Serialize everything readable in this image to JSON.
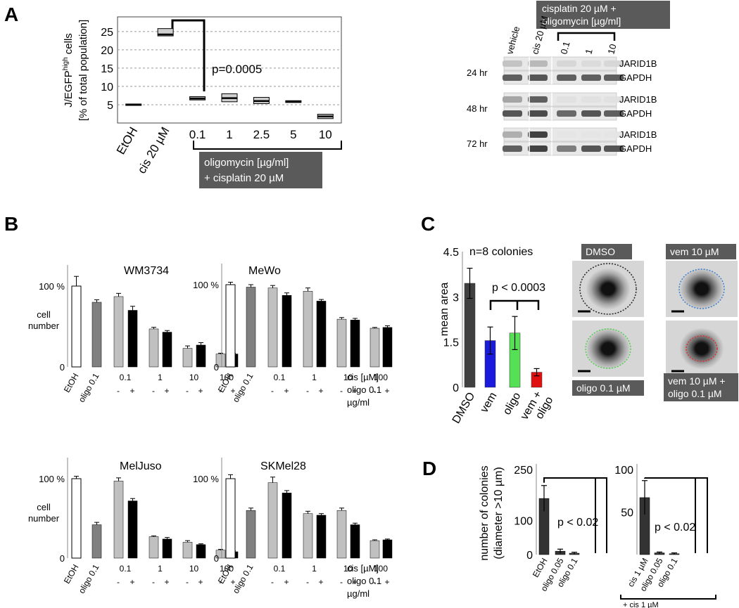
{
  "panels": {
    "A": {
      "label": "A",
      "chart": {
        "type": "box",
        "ylabel_line1": "J/EGFP",
        "ylabel_sup": "high",
        "ylabel_line1_tail": " cells",
        "ylabel_line2": "[% of total population]",
        "categories": [
          "EtOH",
          "cis 20 µM",
          "0.1",
          "1",
          "2.5",
          "5",
          "10"
        ],
        "yticks": [
          "5",
          "10",
          "15",
          "20",
          "25"
        ],
        "ylim": [
          0,
          29
        ],
        "boxes": [
          {
            "q1": 4.8,
            "median": 5.0,
            "q3": 5.2
          },
          {
            "q1": 23.8,
            "median": 24.2,
            "q3": 25.8
          },
          {
            "q1": 6.3,
            "median": 6.7,
            "q3": 7.2
          },
          {
            "q1": 5.8,
            "median": 6.8,
            "q3": 8.0
          },
          {
            "q1": 5.3,
            "median": 6.0,
            "q3": 7.0
          },
          {
            "q1": 5.6,
            "median": 5.9,
            "q3": 6.1
          },
          {
            "q1": 1.2,
            "median": 1.8,
            "q3": 2.4
          }
        ],
        "pvalue": "p=0.0005",
        "bracket_label_line1": "oligomycin [µg/ml]",
        "bracket_label_line2": "+ cisplatin 20 µM"
      },
      "blot": {
        "header_box_line1": "cisplatin 20 µM +",
        "header_box_line2": "oligomycin [µg/ml]",
        "lanes": [
          "vehicle",
          "cis 20 µM",
          "0.1",
          "1",
          "10"
        ],
        "rows": [
          {
            "time": "24 hr",
            "bands": [
              "JARID1B",
              "GAPDH"
            ]
          },
          {
            "time": "48 hr",
            "bands": [
              "JARID1B",
              "GAPDH"
            ]
          },
          {
            "time": "72 hr",
            "bands": [
              "JARID1B",
              "GAPDH"
            ]
          }
        ]
      }
    },
    "B": {
      "label": "B",
      "ytick_top": "100 %",
      "ytick_zero": "0",
      "ylabel_line1": "cell",
      "ylabel_line2": "number",
      "xlabels": [
        "EtOH",
        "oligo 0.1"
      ],
      "cis_doses": [
        "0.1",
        "1",
        "10",
        "100"
      ],
      "signs": [
        "-",
        "+",
        "-",
        "+",
        "-",
        "+",
        "-",
        "+"
      ],
      "cis_label": "cis [µM]",
      "oligo_label": "oligo 0.1",
      "unit_label": "µg/ml",
      "colors": {
        "etoh": "#ffffff",
        "oligo": "#808080",
        "minus": "#c0c0c0",
        "plus": "#000000"
      },
      "chart_data": [
        {
          "type": "bar",
          "title": "WM3734",
          "values": [
            100,
            80,
            87,
            70,
            47,
            43,
            23,
            27,
            16,
            16
          ],
          "errors": [
            12,
            3,
            4,
            5,
            2,
            2,
            3,
            3,
            1,
            1
          ]
        },
        {
          "type": "bar",
          "title": "MeWo",
          "values": [
            100,
            97,
            96,
            87,
            92,
            80,
            58,
            57,
            47,
            48
          ],
          "errors": [
            3,
            3,
            3,
            3,
            4,
            2,
            2,
            2,
            1,
            2
          ]
        },
        {
          "type": "bar",
          "title": "MelJuso",
          "values": [
            100,
            42,
            97,
            72,
            27,
            24,
            20,
            17,
            10,
            8
          ],
          "errors": [
            3,
            3,
            4,
            3,
            1,
            2,
            2,
            1,
            1,
            1
          ]
        },
        {
          "type": "bar",
          "title": "SKMel28",
          "values": [
            100,
            60,
            95,
            82,
            56,
            54,
            60,
            42,
            22,
            23
          ],
          "errors": [
            5,
            3,
            7,
            3,
            3,
            2,
            3,
            2,
            1,
            1
          ]
        }
      ]
    },
    "C": {
      "label": "C",
      "chart_data": {
        "type": "bar",
        "categories": [
          "DMSO",
          "vem",
          "oligo",
          "vem + oligo"
        ],
        "values": [
          3.45,
          1.55,
          1.8,
          0.5
        ],
        "errors": [
          0.5,
          0.45,
          0.55,
          0.12
        ],
        "colors": [
          "#404040",
          "#1a1adc",
          "#55e055",
          "#e01010"
        ],
        "ylabel": "mean area",
        "yticks": [
          "0",
          "1.5",
          "3",
          "4.5"
        ],
        "ylim": [
          0,
          4.5
        ],
        "title": "n=8 colonies",
        "pvalue": "p < 0.0003"
      },
      "images": [
        {
          "label": "DMSO",
          "ring": "#222222"
        },
        {
          "label": "vem 10 µM",
          "ring": "#3a7fd0"
        },
        {
          "label": "oligo 0.1 µM",
          "ring": "#50d050"
        },
        {
          "label": "vem 10 µM +",
          "label2": "oligo 0.1 µM",
          "ring": "#e03030"
        }
      ]
    },
    "D": {
      "label": "D",
      "ylabel_line1": "number of colonies",
      "ylabel_line2": "(diameter >10 µm)",
      "chart_data": [
        {
          "type": "bar",
          "categories": [
            "EtOH",
            "oligo 0.05",
            "oligo 0.1"
          ],
          "values": [
            165,
            10,
            4
          ],
          "errors": [
            38,
            6,
            3
          ],
          "yticks": [
            "0",
            "100",
            "250"
          ],
          "ylim": [
            0,
            250
          ],
          "pvalue": "p < 0.02"
        },
        {
          "type": "bar",
          "categories": [
            "cis 1 µM",
            "oligo 0.05",
            "oligo 0.1"
          ],
          "values": [
            67,
            2,
            1
          ],
          "errors": [
            20,
            1,
            1
          ],
          "yticks": [
            "50",
            "100"
          ],
          "ylim": [
            0,
            100
          ],
          "pvalue": "p < 0.02",
          "bottom_label": "+ cis 1 µM"
        }
      ]
    }
  }
}
